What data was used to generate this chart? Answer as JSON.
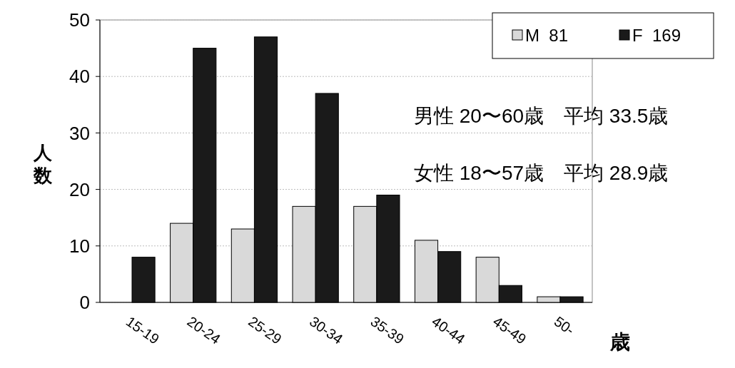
{
  "chart_data": {
    "type": "bar",
    "categories": [
      "15-19",
      "20-24",
      "25-29",
      "30-34",
      "35-39",
      "40-44",
      "45-49",
      "50-"
    ],
    "series": [
      {
        "name": "M  81",
        "color": "#d9d9d9",
        "values": [
          0,
          14,
          13,
          17,
          17,
          11,
          8,
          1
        ]
      },
      {
        "name": "F  169",
        "color": "#1a1a1a",
        "values": [
          8,
          45,
          47,
          37,
          19,
          9,
          3,
          1
        ]
      }
    ],
    "xlabel": "歳",
    "ylabel": "人数",
    "ylim": [
      0,
      50
    ],
    "yticks": [
      0,
      10,
      20,
      30,
      40,
      50
    ],
    "grid": "y",
    "legend": "top right",
    "annotations": [
      "男性 20〜60歳　平均 33.5歳",
      "女性 18〜57歳　平均 28.9歳"
    ]
  }
}
